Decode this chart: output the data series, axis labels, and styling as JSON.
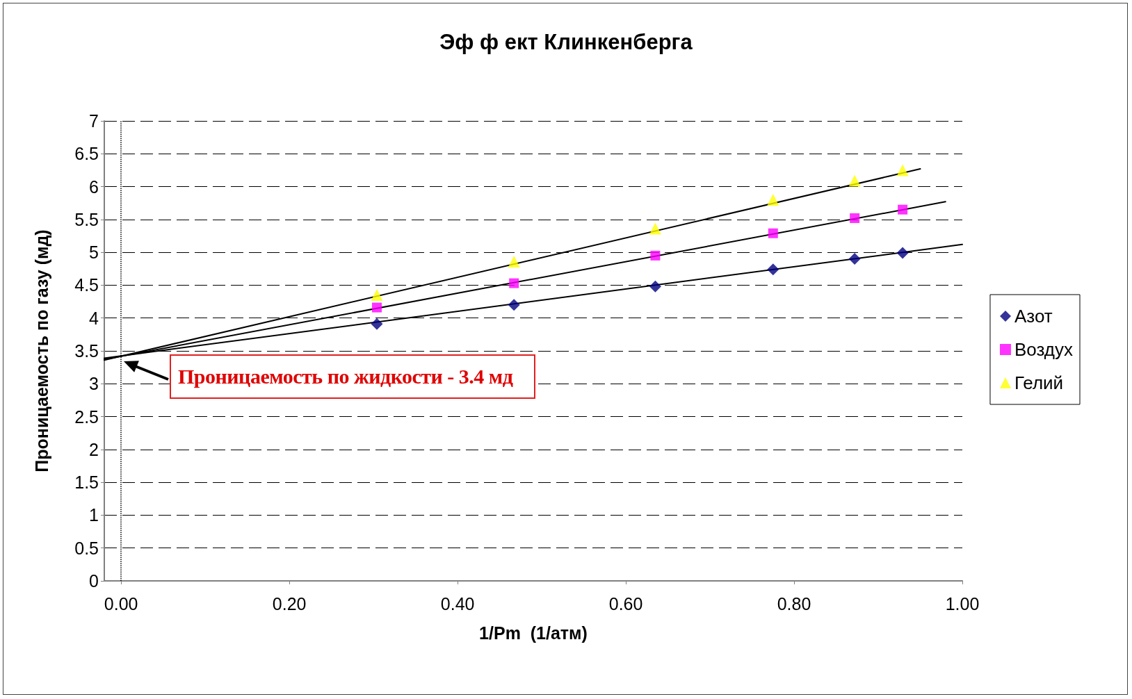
{
  "chart_data": {
    "type": "scatter",
    "title": "Эф ф ект Клинкенберга",
    "xlabel": "1/Pm  (1/атм)",
    "ylabel": "Проницаемость по газу (мд)",
    "xlim": [
      -0.02,
      1.0
    ],
    "xticks": [
      {
        "value": 0,
        "label": "0.00"
      },
      {
        "value": 0.2,
        "label": "0.20"
      },
      {
        "value": 0.4,
        "label": "0.40"
      },
      {
        "value": 0.6,
        "label": "0.60"
      },
      {
        "value": 0.8,
        "label": "0.80"
      },
      {
        "value": 1.0,
        "label": "1.00"
      }
    ],
    "ylim": [
      0,
      7
    ],
    "yticks": [
      0,
      0.5,
      1,
      1.5,
      2,
      2.5,
      3,
      3.5,
      4,
      4.5,
      5,
      5.5,
      6,
      6.5,
      7
    ],
    "grid": "y",
    "legend": "right",
    "series": [
      {
        "name": "Азот",
        "color": "#000080",
        "marker": "diamond",
        "x": [
          0.304,
          0.467,
          0.635,
          0.775,
          0.872,
          0.929
        ],
        "values": [
          3.91,
          4.2,
          4.48,
          4.74,
          4.9,
          4.99
        ]
      },
      {
        "name": "Воздух",
        "color": "#ff00ff",
        "marker": "square",
        "x": [
          0.304,
          0.467,
          0.635,
          0.775,
          0.872,
          0.929
        ],
        "values": [
          4.16,
          4.53,
          4.95,
          5.29,
          5.52,
          5.65
        ]
      },
      {
        "name": "Гелий",
        "color": "#ffff00",
        "marker": "triangle",
        "x": [
          0.304,
          0.467,
          0.635,
          0.775,
          0.872,
          0.929
        ],
        "values": [
          4.35,
          4.86,
          5.36,
          5.8,
          6.09,
          6.25
        ]
      },
      {
        "type": "line",
        "color": "#000000",
        "marker": "none",
        "x": [
          -0.02,
          1.0
        ],
        "values": [
          3.39,
          5.12
        ]
      },
      {
        "type": "line",
        "color": "#000000",
        "marker": "none",
        "x": [
          -0.02,
          0.98
        ],
        "values": [
          3.37,
          5.77
        ]
      },
      {
        "type": "line",
        "color": "#000000",
        "marker": "none",
        "x": [
          -0.02,
          0.95
        ],
        "values": [
          3.36,
          6.27
        ]
      }
    ],
    "ref_lines": [
      {
        "axis": "x",
        "value": 0,
        "color": "#000000",
        "line_style": "dotted"
      }
    ],
    "annotations": [
      "Проницаемость по жидкости - 3.4 мд"
    ]
  }
}
